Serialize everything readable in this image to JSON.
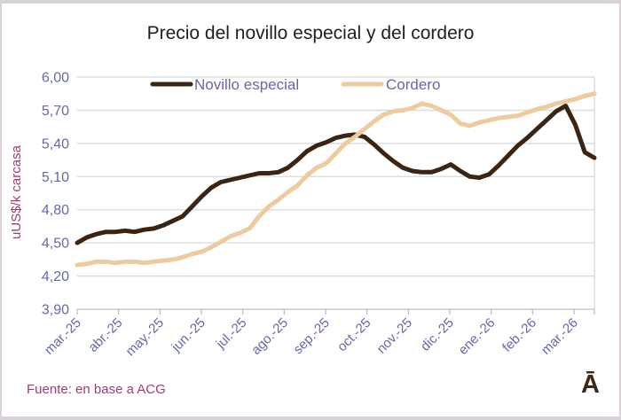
{
  "title": "Precio del novillo especial y del cordero",
  "source_note": "Fuente: en base a ACG",
  "logo_glyph": "Ā",
  "colors": {
    "novillo": "#3a2413",
    "cordero": "#eeca9f",
    "axis_text": "#6568a9",
    "accent_text": "#a23c72",
    "grid": "#d9d9d9",
    "axis_line": "#bfbfbf",
    "logo": "#3e2a15"
  },
  "chart_data": {
    "type": "line",
    "title": "Precio del novillo especial y del cordero",
    "ylabel": "uUS$/k carcasa",
    "xlabel": "",
    "ylim": [
      3.9,
      6.0
    ],
    "ytick_step": 0.3,
    "ytick_labels_top_to_bottom": [
      "6,00",
      "5,70",
      "5,40",
      "5,10",
      "4,80",
      "4,50",
      "4,20",
      "3,90"
    ],
    "categories": [
      "mar.-25",
      "abr.-25",
      "may.-25",
      "jun.-25",
      "jul.-25",
      "ago.-25",
      "sep.-25",
      "oct.-25",
      "nov.-25",
      "dic.-25",
      "ene.-26",
      "feb.-26",
      "mar.-26"
    ],
    "x_resolution": "weekly points, monthly ticks",
    "grid": true,
    "legend_position": "top",
    "series": [
      {
        "name": "Novillo especial",
        "color": "#3a2413",
        "values": [
          4.5,
          4.55,
          4.58,
          4.6,
          4.6,
          4.61,
          4.6,
          4.62,
          4.63,
          4.66,
          4.7,
          4.74,
          4.83,
          4.92,
          5.0,
          5.05,
          5.07,
          5.09,
          5.11,
          5.13,
          5.13,
          5.14,
          5.18,
          5.25,
          5.33,
          5.38,
          5.41,
          5.45,
          5.47,
          5.48,
          5.46,
          5.39,
          5.31,
          5.24,
          5.18,
          5.15,
          5.14,
          5.14,
          5.17,
          5.21,
          5.15,
          5.1,
          5.09,
          5.12,
          5.2,
          5.29,
          5.38,
          5.45,
          5.53,
          5.61,
          5.69,
          5.74,
          5.57,
          5.32,
          5.27
        ]
      },
      {
        "name": "Cordero",
        "color": "#eeca9f",
        "values": [
          4.3,
          4.31,
          4.33,
          4.33,
          4.32,
          4.33,
          4.33,
          4.32,
          4.33,
          4.34,
          4.35,
          4.37,
          4.4,
          4.42,
          4.46,
          4.51,
          4.56,
          4.59,
          4.63,
          4.74,
          4.83,
          4.89,
          4.96,
          5.02,
          5.11,
          5.18,
          5.22,
          5.31,
          5.4,
          5.46,
          5.53,
          5.6,
          5.66,
          5.69,
          5.7,
          5.72,
          5.76,
          5.74,
          5.7,
          5.66,
          5.58,
          5.56,
          5.59,
          5.61,
          5.63,
          5.64,
          5.65,
          5.68,
          5.71,
          5.73,
          5.76,
          5.78,
          5.8,
          5.83,
          5.85
        ]
      }
    ]
  }
}
